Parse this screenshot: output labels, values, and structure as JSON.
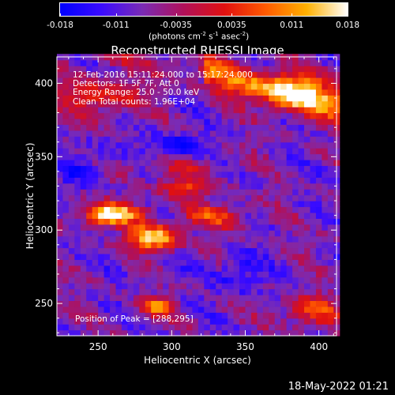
{
  "colorbar": {
    "ticks": [
      "-0.018",
      "-0.011",
      "-0.0035",
      "0.0035",
      "0.011",
      "0.018"
    ],
    "tick_values": [
      -0.018,
      -0.011,
      -0.0035,
      0.0035,
      0.011,
      0.018
    ],
    "range": [
      -0.018,
      0.018
    ],
    "unit_base": "(photons cm",
    "unit_exp1": "-2",
    "unit_mid": " s",
    "unit_exp2": "-1",
    "unit_tail": " asec",
    "unit_exp3": "-2",
    "unit_close": ")"
  },
  "chart_data": {
    "type": "heatmap",
    "title": "Reconstructed RHESSI Image",
    "xlabel": "Heliocentric X (arcsec)",
    "ylabel": "Heliocentric Y (arcsec)",
    "xlim": [
      222,
      412
    ],
    "ylim": [
      228,
      418
    ],
    "x_ticks": [
      250,
      300,
      350,
      400
    ],
    "y_ticks": [
      250,
      300,
      350,
      400
    ],
    "x_tick_labels": [
      "250",
      "300",
      "350",
      "400"
    ],
    "y_tick_labels": [
      "250",
      "300",
      "350",
      "400"
    ],
    "peak": [
      288,
      295
    ],
    "colormap": [
      "#0000ff",
      "#3a0bff",
      "#7a2bb5",
      "#b0105a",
      "#e01010",
      "#ff5a00",
      "#ffb000",
      "#ffffff"
    ],
    "annotations": {
      "time": "12-Feb-2016 15:11:24.000 to 15:17:24.000",
      "detectors": "Detectors: 1F 5F 7F, Att 0",
      "energy": "Energy Range: 25.0 - 50.0 keV",
      "clean": "Clean     Total counts: 1.96E+04",
      "peak": "Position of Peak = [288,295]"
    }
  },
  "footer": {
    "date": "18-May-2022 01:21"
  }
}
